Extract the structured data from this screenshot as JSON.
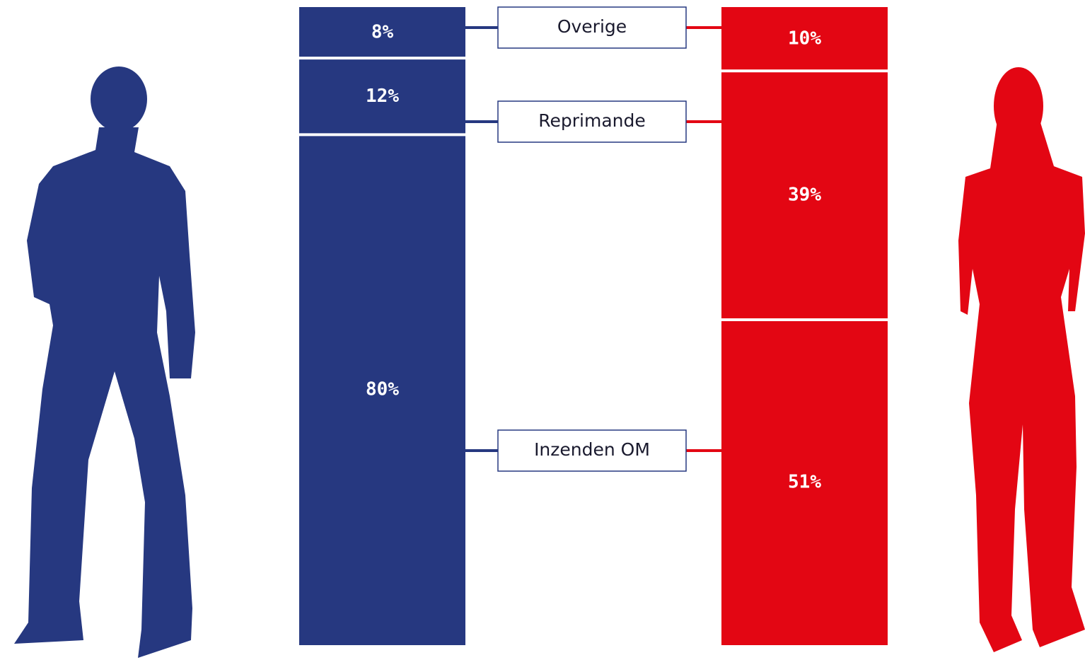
{
  "chart_data": {
    "type": "stacked_bar",
    "categories": [
      null,
      null
    ],
    "colors": [
      "#263880",
      "#e30613"
    ],
    "ylim": [
      0,
      100
    ],
    "series": [
      {
        "name": "Overige",
        "values": [
          8,
          10
        ],
        "value_labels": [
          "8%",
          "10%"
        ]
      },
      {
        "name": "Reprimande",
        "values": [
          12,
          39
        ],
        "value_labels": [
          "12%",
          "39%"
        ]
      },
      {
        "name": "Inzenden OM",
        "values": [
          80,
          51
        ],
        "value_labels": [
          "80%",
          "51%"
        ]
      }
    ]
  }
}
